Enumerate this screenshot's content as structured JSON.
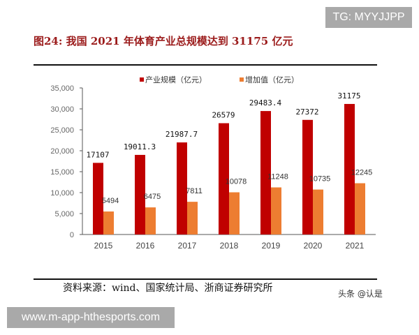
{
  "watermark_top": "TG: MYYJJPP",
  "watermark_bottom": "www.m-app-hthesports.com",
  "watermark_corner": "头条 @认是",
  "source": "资料来源：wind、国家统计局、浙商证券研究所",
  "colors": {
    "series1": "#c00000",
    "series2": "#ed7d31",
    "title": "#9b1b1b"
  },
  "chart_data": {
    "type": "bar",
    "title": "图24:   我国 2021 年体育产业总规模达到 31175 亿元",
    "categories": [
      "2015",
      "2016",
      "2017",
      "2018",
      "2019",
      "2020",
      "2021"
    ],
    "series": [
      {
        "name": "产业规模（亿元）",
        "values": [
          17107,
          19011.3,
          21987.7,
          26579,
          29483.4,
          27372,
          31175
        ],
        "labels": [
          "17107",
          "19011.3",
          "21987.7",
          "26579",
          "29483.4",
          "27372",
          "31175"
        ]
      },
      {
        "name": "增加值（亿元）",
        "values": [
          5494,
          6475,
          7811,
          10078,
          11248,
          10735,
          12245
        ],
        "labels": [
          "5494",
          "6475",
          "7811",
          "10078",
          "11248",
          "10735",
          "12245"
        ]
      }
    ],
    "ylim": [
      0,
      35000
    ],
    "yticks": [
      "0",
      "5,000",
      "10,000",
      "15,000",
      "20,000",
      "25,000",
      "30,000",
      "35,000"
    ],
    "legend": "top",
    "grid": false
  }
}
